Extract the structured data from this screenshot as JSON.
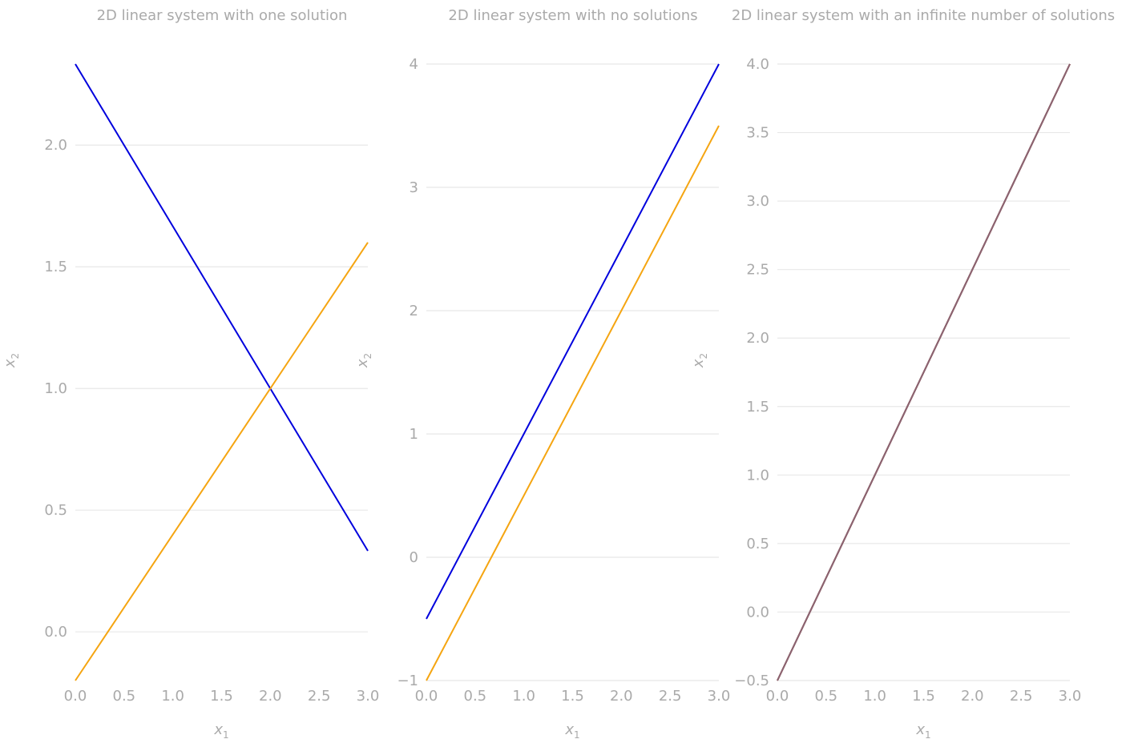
{
  "chart_data": [
    {
      "type": "line",
      "title": "2D linear system with one solution",
      "xlabel": "x",
      "xlabel_sub": "1",
      "ylabel": "x",
      "ylabel_sub": "2",
      "xlim": [
        0,
        3
      ],
      "ylim": [
        -0.2,
        2.333
      ],
      "xticks": [
        0,
        0.5,
        1,
        1.5,
        2,
        2.5,
        3
      ],
      "xtick_labels": [
        "0.0",
        "0.5",
        "1.0",
        "1.5",
        "2.0",
        "2.5",
        "3.0"
      ],
      "yticks": [
        0,
        0.5,
        1,
        1.5,
        2
      ],
      "ytick_labels": [
        "0.0",
        "0.5",
        "1.0",
        "1.5",
        "2.0"
      ],
      "grid": "y",
      "series": [
        {
          "x": [
            0,
            3
          ],
          "y": [
            2.333,
            0.333
          ],
          "color": "#0000dd"
        },
        {
          "x": [
            0,
            3
          ],
          "y": [
            -0.2,
            1.6
          ],
          "color": "#f5a511"
        }
      ]
    },
    {
      "type": "line",
      "title": "2D linear system with no solutions",
      "xlabel": "x",
      "xlabel_sub": "1",
      "ylabel": "x",
      "ylabel_sub": "2",
      "xlim": [
        0,
        3
      ],
      "ylim": [
        -1,
        4
      ],
      "xticks": [
        0,
        0.5,
        1,
        1.5,
        2,
        2.5,
        3
      ],
      "xtick_labels": [
        "0.0",
        "0.5",
        "1.0",
        "1.5",
        "2.0",
        "2.5",
        "3.0"
      ],
      "yticks": [
        -1,
        0,
        1,
        2,
        3,
        4
      ],
      "ytick_labels": [
        "−1",
        "0",
        "1",
        "2",
        "3",
        "4"
      ],
      "grid": "y",
      "series": [
        {
          "x": [
            0,
            3
          ],
          "y": [
            -0.5,
            4
          ],
          "color": "#0000dd"
        },
        {
          "x": [
            0,
            3
          ],
          "y": [
            -1,
            3.5
          ],
          "color": "#f5a511"
        }
      ]
    },
    {
      "type": "line",
      "title": "2D linear system with an infinite number of solutions",
      "xlabel": "x",
      "xlabel_sub": "1",
      "ylabel": "x",
      "ylabel_sub": "2",
      "xlim": [
        0,
        3
      ],
      "ylim": [
        -0.5,
        4
      ],
      "xticks": [
        0,
        0.5,
        1,
        1.5,
        2,
        2.5,
        3
      ],
      "xtick_labels": [
        "0.0",
        "0.5",
        "1.0",
        "1.5",
        "2.0",
        "2.5",
        "3.0"
      ],
      "yticks": [
        -0.5,
        0,
        0.5,
        1,
        1.5,
        2,
        2.5,
        3,
        3.5,
        4
      ],
      "ytick_labels": [
        "−0.5",
        "0.0",
        "0.5",
        "1.0",
        "1.5",
        "2.0",
        "2.5",
        "3.0",
        "3.5",
        "4.0"
      ],
      "grid": "y",
      "series": [
        {
          "x": [
            0,
            3
          ],
          "y": [
            -0.5,
            4
          ],
          "color": "#0000dd"
        },
        {
          "x": [
            0,
            3
          ],
          "y": [
            -0.5,
            4
          ],
          "color": "#f5a511"
        },
        {
          "x": [
            0,
            3
          ],
          "y": [
            -0.5,
            4
          ],
          "color": "#8a6272"
        }
      ]
    }
  ]
}
